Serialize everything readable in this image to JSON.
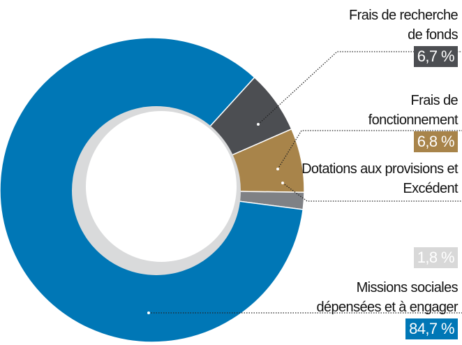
{
  "chart_data": {
    "type": "pie",
    "categories": [
      "Frais de recherche de fonds",
      "Frais de fonctionnement",
      "Dotations aux provisions et Excédent",
      "Missions sociales dépensées et à engager"
    ],
    "values": [
      6.7,
      6.8,
      1.8,
      84.7
    ],
    "value_labels": [
      "6,7 %",
      "6,8 %",
      "1,8 %",
      "84,7 %"
    ],
    "colors": [
      "#4c4e52",
      "#a8844a",
      "#7f8185",
      "#0077b6"
    ],
    "label_colors": [
      "#4c4e52",
      "#a8844a",
      "#d8d8d8",
      "#0077b6"
    ]
  }
}
